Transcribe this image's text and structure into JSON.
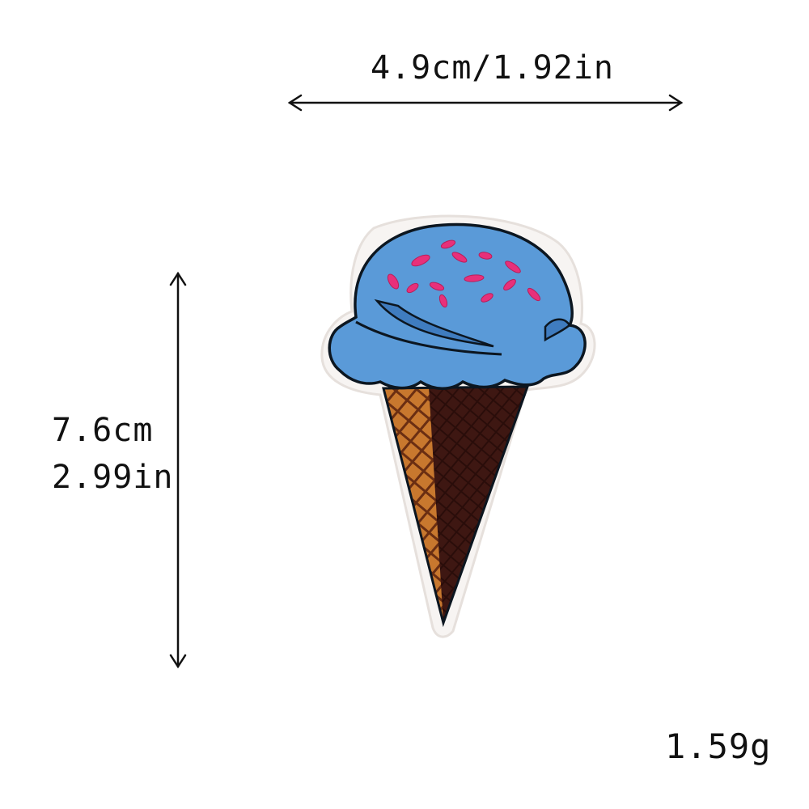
{
  "product": {
    "subject": "ice-cream-cone-embroidered-patch",
    "colors": {
      "scoop": "#5a9ad8",
      "sprinkles": "#e8307a",
      "cone_light": "#c8782e",
      "cone_dark": "#3e1712",
      "outline": "#0c1620",
      "backing": "#f7f4f2"
    }
  },
  "dimensions": {
    "width_label": "4.9cm/1.92in",
    "height_cm": "7.6cm",
    "height_in": "2.99in"
  },
  "weight": {
    "label": "1.59g"
  }
}
